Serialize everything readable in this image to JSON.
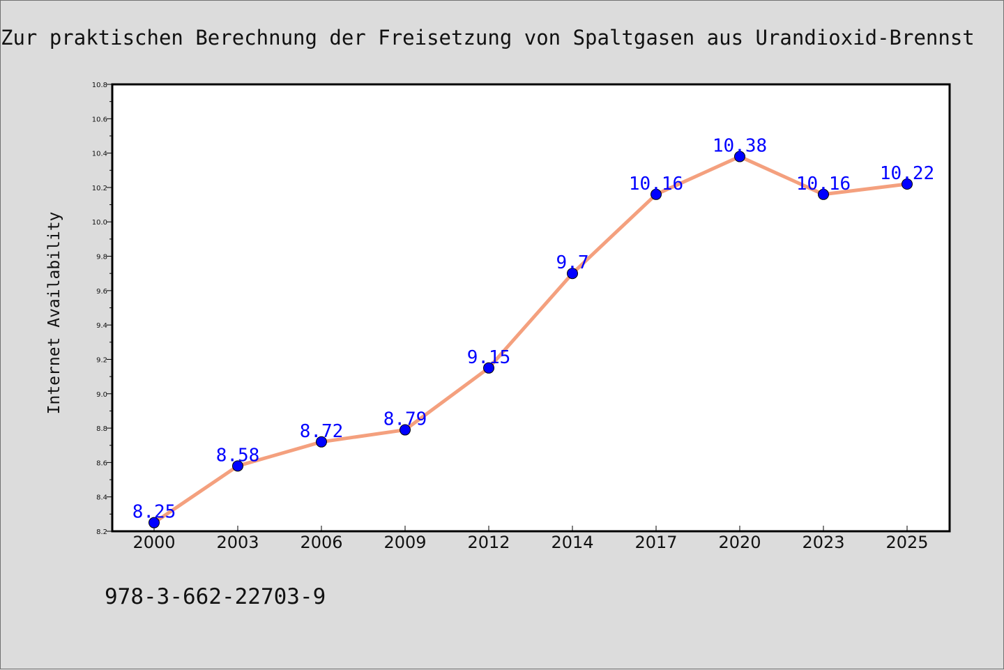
{
  "chart_data": {
    "type": "line",
    "title": "Zur praktischen Berechnung der Freisetzung von Spaltgasen aus Urandioxid-Brennst",
    "xlabel": "",
    "ylabel": "Internet Availability",
    "categories": [
      "2000",
      "2003",
      "2006",
      "2009",
      "2012",
      "2014",
      "2017",
      "2020",
      "2023",
      "2025"
    ],
    "series": [
      {
        "values": [
          8.25,
          8.58,
          8.72,
          8.79,
          9.15,
          9.7,
          10.16,
          10.38,
          10.16,
          10.22
        ],
        "labels": [
          "8.25",
          "8.58",
          "8.72",
          "8.79",
          "9.15",
          "9.7",
          "10.16",
          "10.38",
          "10.16",
          "10.22"
        ],
        "line_color": "#f4a07e",
        "marker_color": "#0000ff",
        "label_color": "#0000ff"
      }
    ],
    "ylim": [
      8.2,
      10.8
    ],
    "yticks": [
      "8.2",
      "8.4",
      "8.6",
      "8.8",
      "9.0",
      "9.2",
      "9.4",
      "9.6",
      "9.8",
      "10.0",
      "10.2",
      "10.4",
      "10.6",
      "10.8"
    ],
    "grid": false,
    "legend": "none"
  },
  "footer": {
    "isbn": "978-3-662-22703-9"
  },
  "colors": {
    "background": "#dcdcdc",
    "plot_background": "#ffffff",
    "axis": "#000000"
  }
}
